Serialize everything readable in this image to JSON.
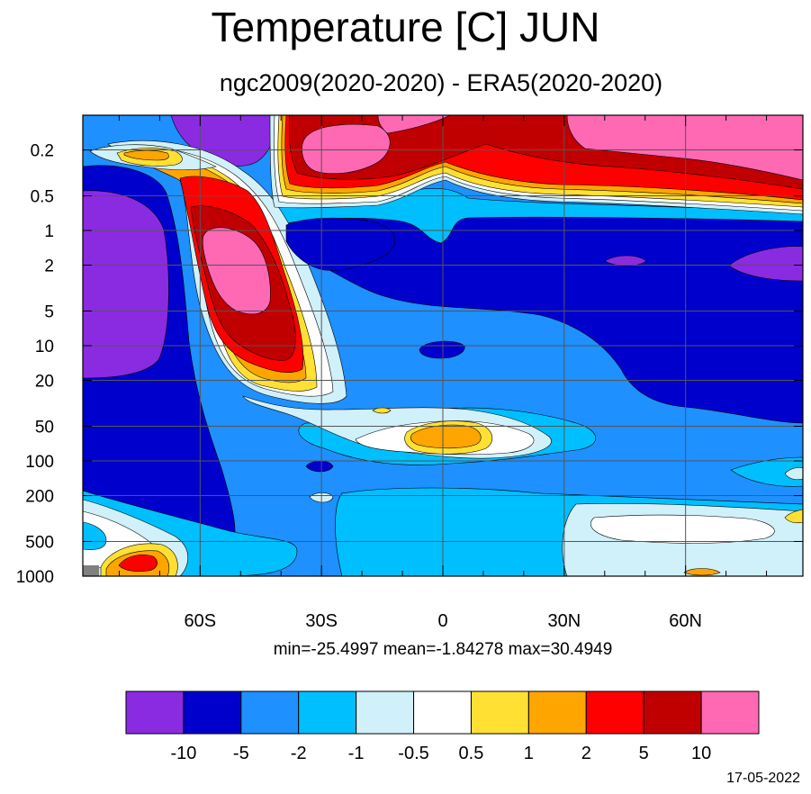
{
  "title": "Temperature [C] JUN",
  "subtitle": "ngc2009(2020-2020) - ERA5(2020-2020)",
  "stats": "min=-25.4997   mean=-1.84278   max=30.4949",
  "date": "17-05-2022",
  "chart_data": {
    "type": "contour",
    "title": "Temperature [C] JUN",
    "subtitle": "ngc2009(2020-2020) - ERA5(2020-2020)",
    "xlabel": "",
    "ylabel": "",
    "x_ticks": [
      "60S",
      "30S",
      "0",
      "30N",
      "60N"
    ],
    "x_tick_values": [
      -60,
      -30,
      0,
      30,
      60
    ],
    "xlim": [
      -89,
      89
    ],
    "y_ticks": [
      "0.2",
      "0.5",
      "1",
      "2",
      "5",
      "10",
      "20",
      "50",
      "100",
      "200",
      "500",
      "1000"
    ],
    "y_tick_values": [
      0.2,
      0.5,
      1,
      2,
      5,
      10,
      20,
      50,
      100,
      200,
      500,
      1000
    ],
    "ylim": [
      0.1,
      1000
    ],
    "y_scale": "log",
    "y_inverted": true,
    "grid": true,
    "colorbar": {
      "labels": [
        "-10",
        "-5",
        "-2",
        "-1",
        "-0.5",
        "0.5",
        "1",
        "2",
        "5",
        "10"
      ],
      "thresholds": [
        -10,
        -5,
        -2,
        -1,
        -0.5,
        0.5,
        1,
        2,
        5,
        10
      ],
      "colors": [
        "#8a2be2",
        "#0000cd",
        "#1e90ff",
        "#00bfff",
        "#d0f0fa",
        "#ffffff",
        "#ffe033",
        "#ffa500",
        "#ff0000",
        "#c00000",
        "#ff69b4"
      ]
    },
    "min": -25.4997,
    "mean": -1.84278,
    "max": 30.4949
  }
}
